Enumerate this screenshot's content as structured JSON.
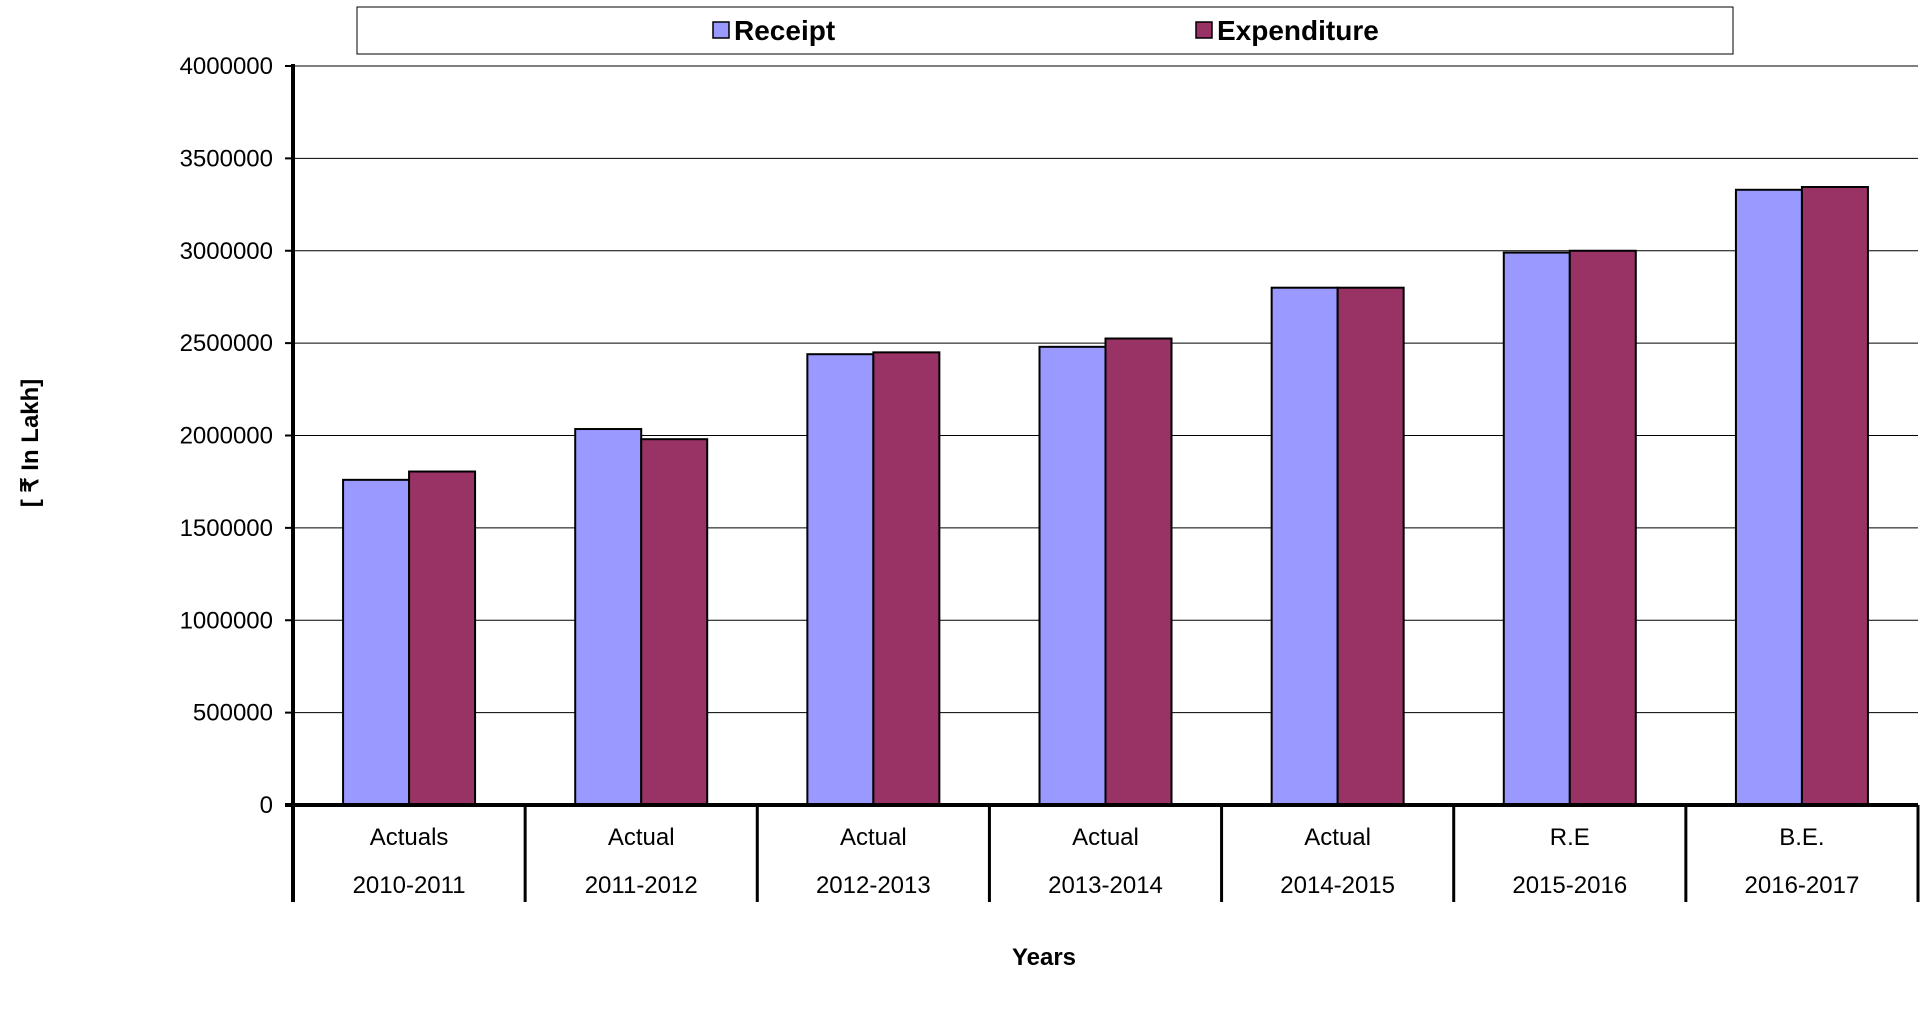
{
  "chart_data": {
    "type": "bar",
    "categories": [
      [
        "Actuals",
        "2010-2011"
      ],
      [
        "Actual",
        "2011-2012"
      ],
      [
        "Actual",
        "2012-2013"
      ],
      [
        "Actual",
        "2013-2014"
      ],
      [
        "Actual",
        "2014-2015"
      ],
      [
        "R.E",
        "2015-2016"
      ],
      [
        "B.E.",
        "2016-2017"
      ]
    ],
    "series": [
      {
        "name": "Receipt",
        "color": "#9999FF",
        "values": [
          1760000,
          2035000,
          2440000,
          2480000,
          2800000,
          2990000,
          3330000
        ]
      },
      {
        "name": "Expenditure",
        "color": "#993366",
        "values": [
          1805000,
          1980000,
          2450000,
          2525000,
          2800000,
          3000000,
          3345000
        ]
      }
    ],
    "yticks": [
      "0",
      "500000",
      "1000000",
      "1500000",
      "2000000",
      "2500000",
      "3000000",
      "3500000",
      "4000000"
    ],
    "ylim": [
      0,
      4000000
    ],
    "ylabel": "[ ₹ In Lakh]",
    "xlabel": "Years",
    "title": "",
    "grid": true,
    "legend": {
      "position": "top",
      "items": [
        "Receipt",
        "Expenditure"
      ]
    }
  }
}
